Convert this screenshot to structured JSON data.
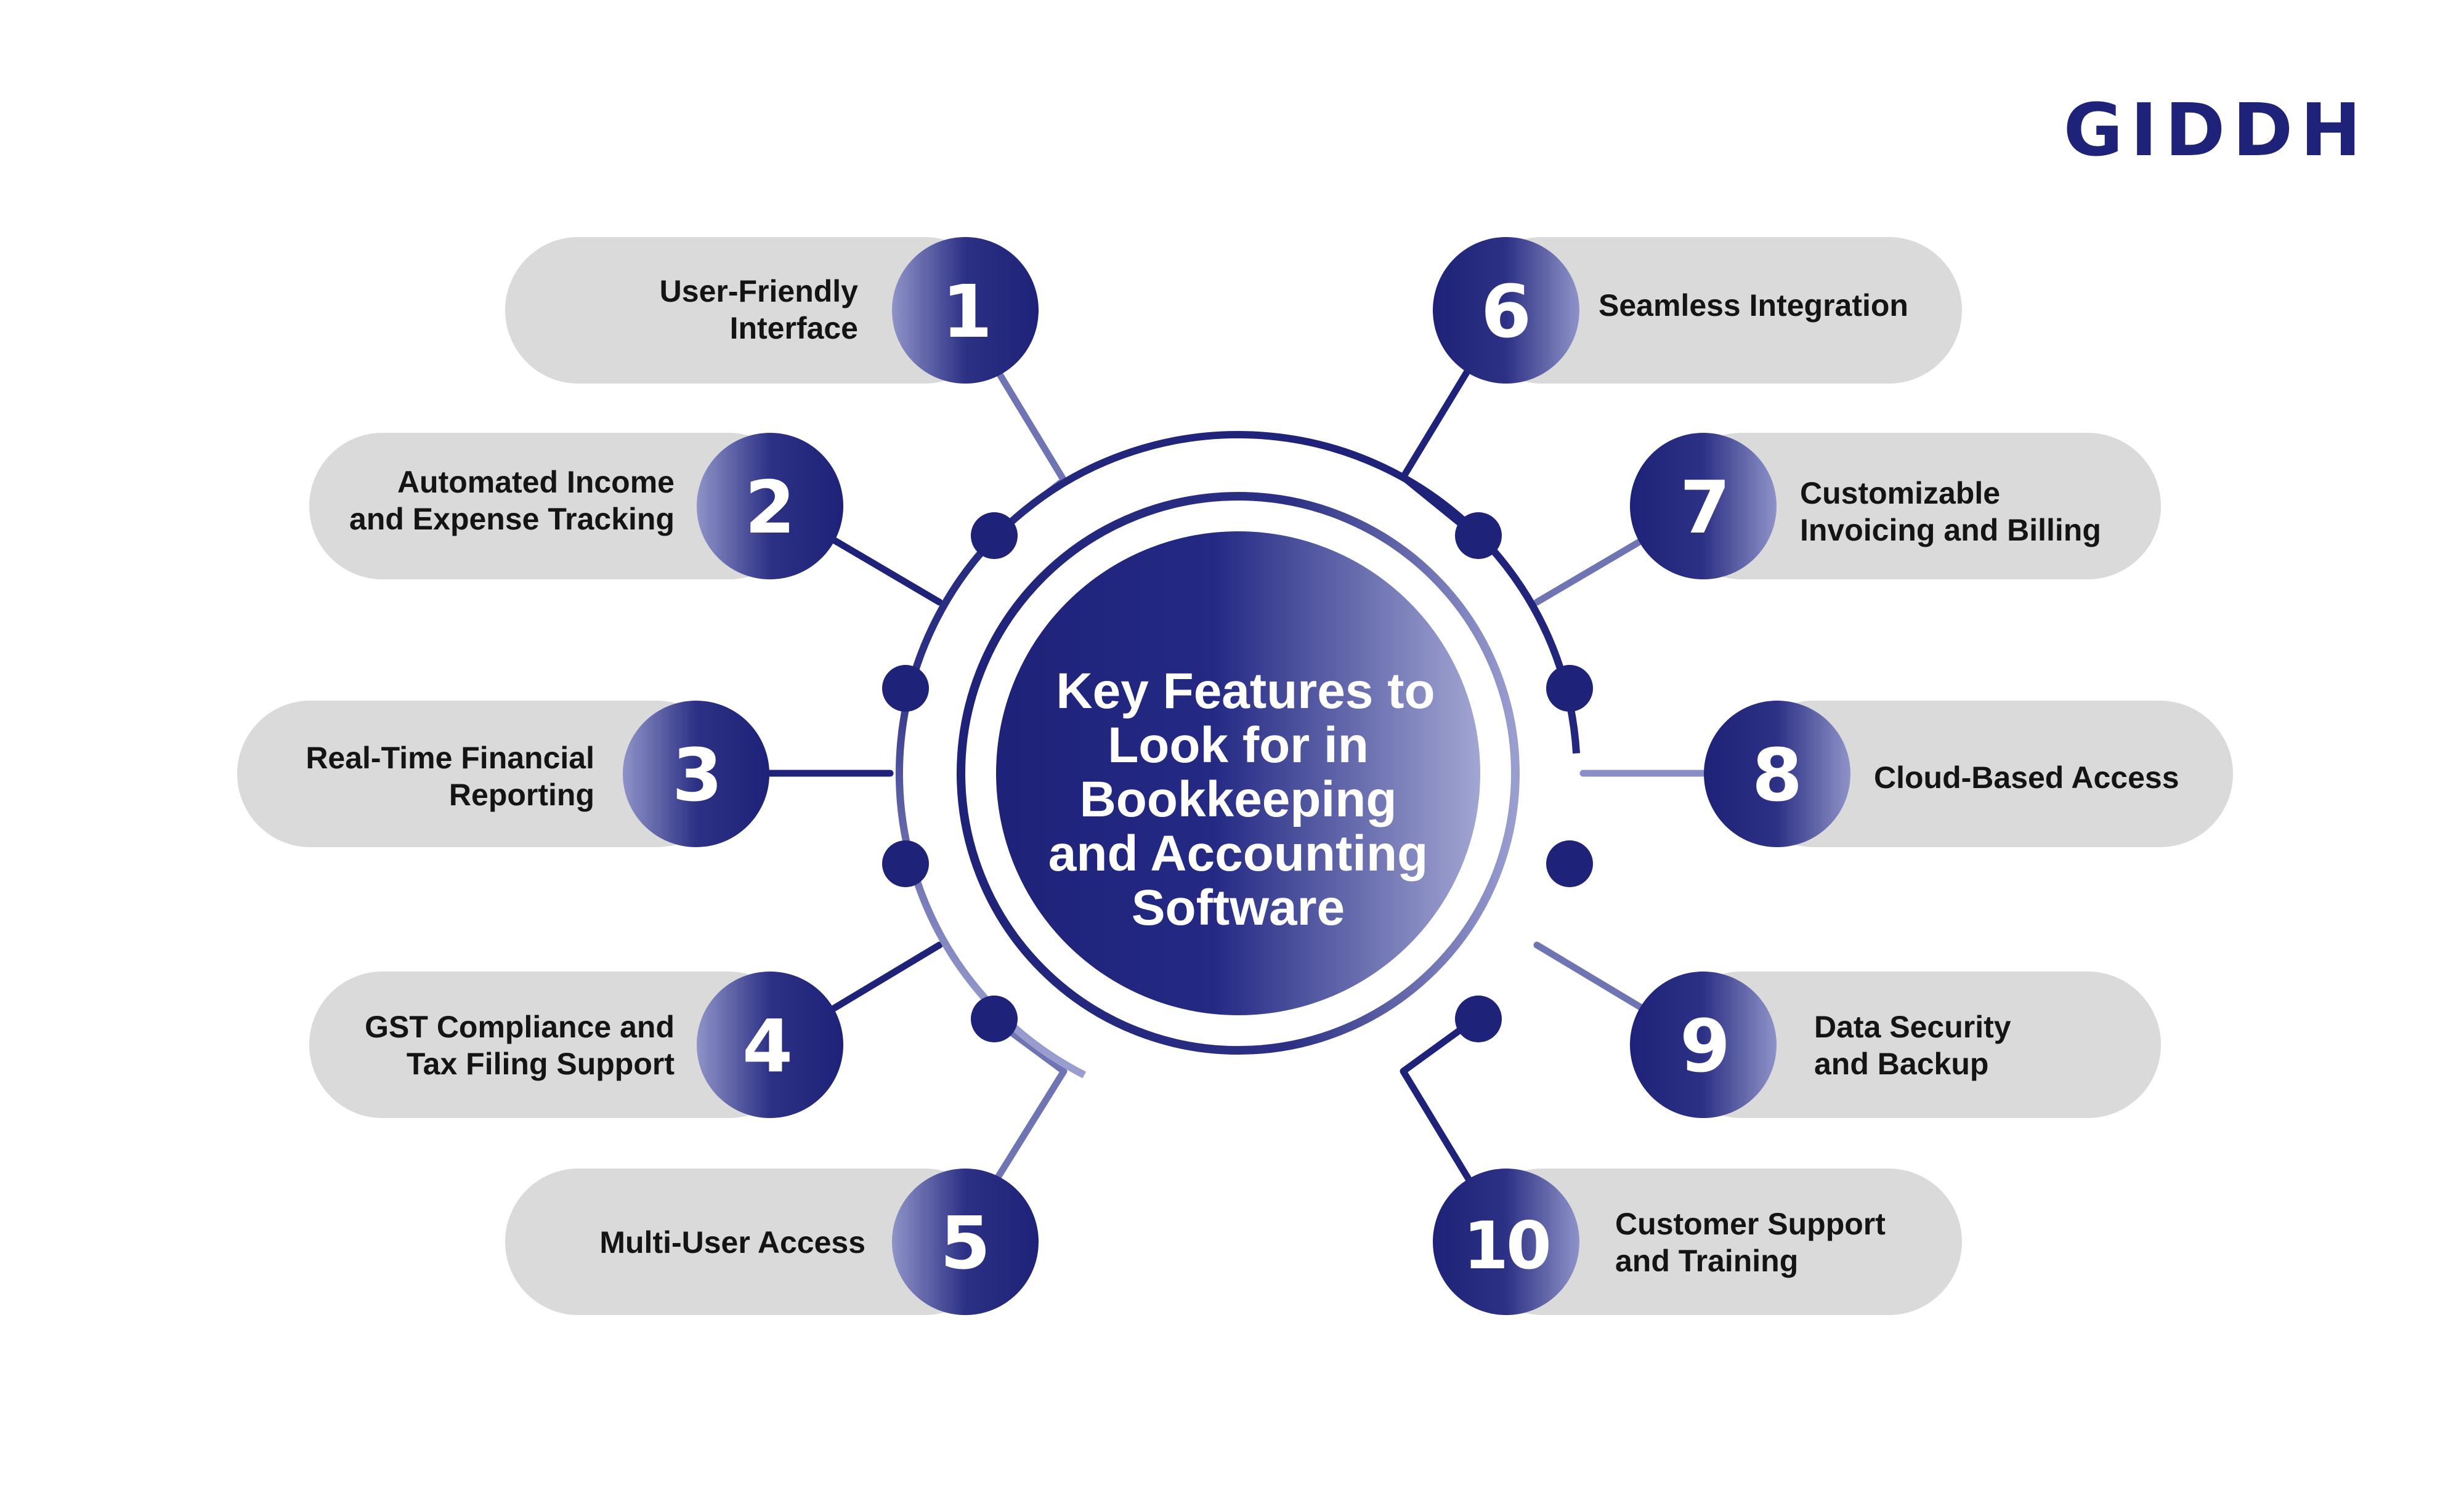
{
  "brand": {
    "logo_text": "GIDDH",
    "primary_color": "#1e2278",
    "accent_color": "#8a8fc5",
    "pill_color": "#dadada"
  },
  "title": {
    "lines": [
      "Key Features to",
      "Look for in",
      "Bookkeeping",
      "and Accounting",
      "Software"
    ]
  },
  "features": [
    {
      "number": "1",
      "lines": [
        "User-Friendly",
        "Interface"
      ]
    },
    {
      "number": "2",
      "lines": [
        "Automated Income",
        "and Expense Tracking"
      ]
    },
    {
      "number": "3",
      "lines": [
        "Real-Time Financial",
        "Reporting"
      ]
    },
    {
      "number": "4",
      "lines": [
        "GST Compliance and",
        "Tax Filing Support"
      ]
    },
    {
      "number": "5",
      "lines": [
        "Multi-User Access"
      ]
    },
    {
      "number": "6",
      "lines": [
        "Seamless Integration"
      ]
    },
    {
      "number": "7",
      "lines": [
        "Customizable",
        "Invoicing and Billing"
      ]
    },
    {
      "number": "8",
      "lines": [
        "Cloud-Based Access"
      ]
    },
    {
      "number": "9",
      "lines": [
        "Data Security",
        "and Backup"
      ]
    },
    {
      "number": "10",
      "lines": [
        "Customer Support",
        "and Training"
      ]
    }
  ]
}
